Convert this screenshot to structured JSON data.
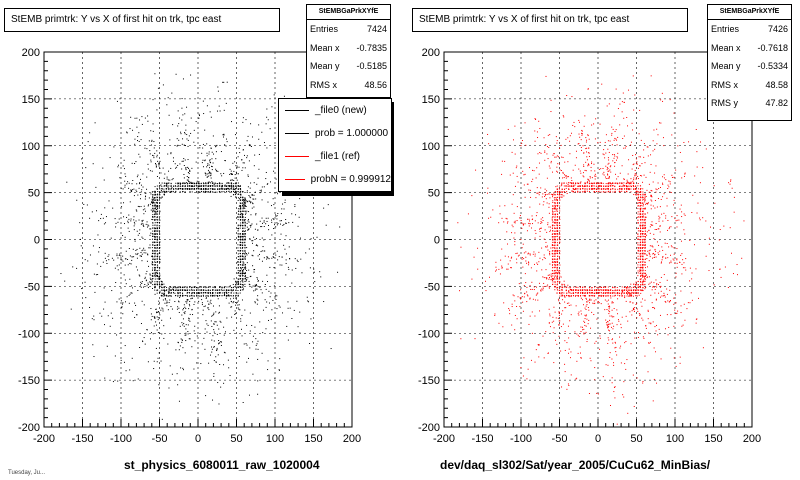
{
  "chart_data": [
    {
      "type": "scatter",
      "title": "StEMB primtrk: Y vs X of first hit on trk, tpc east",
      "xlabel": "st_physics_6080011_raw_1020004",
      "ylabel": "",
      "xlim": [
        -200,
        200
      ],
      "ylim": [
        -200,
        200
      ],
      "xticks": [
        "-200",
        "-150",
        "-100",
        "-50",
        "0",
        "50",
        "100",
        "150",
        "200"
      ],
      "yticks": [
        "200",
        "150",
        "100",
        "50",
        "0",
        "-50",
        "-100",
        "-150",
        "-200"
      ],
      "grid": true,
      "marker_color": "#000000",
      "stats": {
        "title": "StEMBGaPrkXYfE",
        "rows": [
          {
            "label": "Entries",
            "value": "7424"
          },
          {
            "label": "Mean x",
            "value": "-0.7835"
          },
          {
            "label": "Mean y",
            "value": "-0.5185"
          },
          {
            "label": "RMS x",
            "value": "48.56"
          }
        ]
      },
      "legend": {
        "placement": "top-right",
        "entries": [
          {
            "label": "_file0 (new)",
            "color": "#000000"
          },
          {
            "label": "prob = 1.000000",
            "color": "#000000"
          },
          {
            "label": "_file1 (ref)",
            "color": "#ff0000"
          },
          {
            "label": "probN = 0.999912",
            "color": "#ff0000"
          }
        ]
      },
      "footer": "Tuesday, Ju..."
    },
    {
      "type": "scatter",
      "title": "StEMB primtrk: Y vs X of first hit on trk, tpc east",
      "xlabel": "dev/daq_sl302/Sat/year_2005/CuCu62_MinBias/",
      "ylabel": "",
      "xlim": [
        -200,
        200
      ],
      "ylim": [
        -200,
        200
      ],
      "xticks": [
        "-200",
        "-150",
        "-100",
        "-50",
        "0",
        "50",
        "100",
        "150",
        "200"
      ],
      "yticks": [
        "200",
        "150",
        "100",
        "50",
        "0",
        "-50",
        "-100",
        "-150",
        "-200"
      ],
      "grid": true,
      "marker_color": "#ff0000",
      "stats": {
        "title": "StEMBGaPrkXYfE",
        "rows": [
          {
            "label": "Entries",
            "value": "7426"
          },
          {
            "label": "Mean x",
            "value": "-0.7618"
          },
          {
            "label": "Mean y",
            "value": "-0.5334"
          },
          {
            "label": "RMS x",
            "value": "48.58"
          },
          {
            "label": "RMS y",
            "value": "47.82"
          }
        ]
      }
    }
  ]
}
